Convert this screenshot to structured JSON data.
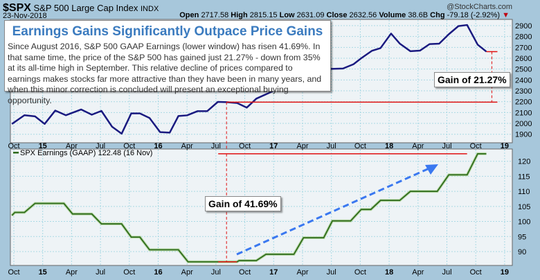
{
  "header": {
    "symbol": "$SPX",
    "name": "S&P 500 Large Cap Index",
    "exchange": "INDX",
    "date": "23-Nov-2018",
    "watermark": "@StockCharts.com",
    "open_label": "Open",
    "open": "2717.58",
    "high_label": "High",
    "high": "2815.15",
    "low_label": "Low",
    "low": "2631.09",
    "close_label": "Close",
    "close": "2632.56",
    "volume_label": "Volume",
    "volume": "38.6B",
    "chg_label": "Chg",
    "chg": "-79.18 (-2.92%)",
    "chg_arrow": "▼"
  },
  "annotation": {
    "title": "Earnings Gains Significantly Outpace Price Gains",
    "body": "Since August 2016, S&P 500 GAAP Earnings (lower window) has risen 41.69%. In that same time, the price of the S&P 500 has gained just 21.27% - down from 35% at its all-time high in September. This relative decline of prices compared to earnings makes stocks far more attractive than they have been in many years, and when this minor correction is concluded will present an exceptional buying opportunity.",
    "price_gain": "Gain of 21.27%",
    "earnings_gain": "Gain of 41.69%"
  },
  "colors": {
    "price": "#1a1a80",
    "earnings": "#2e6b1a",
    "marker": "#e01010",
    "arrow": "#3a78f0",
    "plot_bg": "#eef3f6",
    "grid": "#a9d9e4"
  },
  "chart_data": [
    {
      "type": "line",
      "title": "$SPX S&P 500 Large Cap Index",
      "x_unit": "months since Oct 2014",
      "x_ticks": [
        "Oct",
        "15",
        "Apr",
        "Jul",
        "Oct",
        "16",
        "Apr",
        "Jul",
        "Oct",
        "17",
        "Apr",
        "Jul",
        "Oct",
        "18",
        "Apr",
        "Jul",
        "Oct",
        "19"
      ],
      "y_ticks": [
        2900,
        2800,
        2700,
        2600,
        2500,
        2400,
        2300,
        2200,
        2100,
        2000,
        1900
      ],
      "ylim": [
        1880,
        2930
      ],
      "t": [
        -0.2,
        1.1,
        2.2,
        3.2,
        4.3,
        5.4,
        7.0,
        8.1,
        9.1,
        10.2,
        11.2,
        12.2,
        13.1,
        14.1,
        15.2,
        16.2,
        17.1,
        18.0,
        19.1,
        20.1,
        21.2,
        22.1,
        23.2,
        24.2,
        25.2,
        26.8,
        28.2,
        29.6,
        31.3,
        32.4,
        34.2,
        35.3,
        36.1,
        37.2,
        38.1,
        39.2,
        40.1,
        41.2,
        42.2,
        43.2,
        44.2,
        45.2,
        46.2,
        47.1,
        48.2,
        49.1
      ],
      "values": [
        1995,
        2075,
        2065,
        1995,
        2118,
        2075,
        2128,
        2080,
        2115,
        1970,
        1905,
        2092,
        2092,
        2050,
        1920,
        1915,
        2068,
        2074,
        2113,
        2113,
        2198,
        2196,
        2188,
        2145,
        2228,
        2292,
        2360,
        2400,
        2470,
        2500,
        2505,
        2545,
        2600,
        2668,
        2693,
        2827,
        2735,
        2665,
        2670,
        2730,
        2734,
        2821,
        2896,
        2906,
        2725,
        2661
      ],
      "reference": {
        "base_t": 22.1,
        "base_value": 2196,
        "end_t": 49.1,
        "end_value": 2661
      }
    },
    {
      "type": "line",
      "legend": "SPX Earnings (GAAP) 122.48 (16 Nov)",
      "x_ticks": [
        "Oct",
        "15",
        "Apr",
        "Jul",
        "Oct",
        "16",
        "Apr",
        "Jul",
        "Oct",
        "17",
        "Apr",
        "Jul",
        "Oct",
        "18",
        "Apr",
        "Jul",
        "Oct",
        "19"
      ],
      "y_ticks": [
        120,
        115,
        110,
        105,
        100,
        95,
        90
      ],
      "ylim": [
        85,
        124
      ],
      "t": [
        -0.2,
        0.1,
        1.1,
        2.2,
        5.2,
        6.1,
        8.1,
        9.1,
        11.2,
        12.2,
        13.1,
        14.1,
        17.1,
        18.1,
        23.2,
        23.4,
        25.2,
        26.2,
        29.1,
        30.1,
        32.2,
        33.1,
        35.0,
        36.1,
        37.1,
        38.1,
        40.1,
        41.2,
        44.0,
        45.2,
        47.1,
        48.2,
        49.1
      ],
      "values": [
        102,
        103,
        103,
        106,
        106,
        102.5,
        102.5,
        99.2,
        99.2,
        94.8,
        94.8,
        90.6,
        90.6,
        86.6,
        86.6,
        87,
        87,
        89.1,
        89.1,
        94.6,
        94.6,
        100.2,
        100.2,
        104,
        104,
        107,
        107,
        110,
        110,
        115.5,
        115.5,
        122.5,
        122.5
      ],
      "reference": {
        "base_t": 22.1,
        "base_value": 86.6,
        "end_value": 122.5
      }
    }
  ]
}
